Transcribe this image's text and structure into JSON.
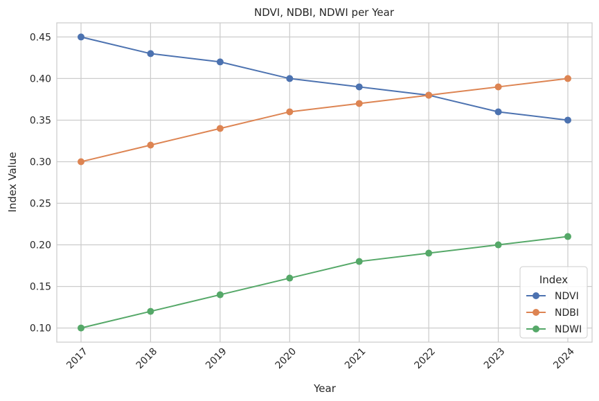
{
  "chart_data": {
    "type": "line",
    "title": "NDVI, NDBI, NDWI per Year",
    "xlabel": "Year",
    "ylabel": "Index Value",
    "categories": [
      "2017",
      "2018",
      "2019",
      "2020",
      "2021",
      "2022",
      "2023",
      "2024"
    ],
    "yticks": [
      "0.10",
      "0.15",
      "0.20",
      "0.25",
      "0.30",
      "0.35",
      "0.40",
      "0.45"
    ],
    "ylim": [
      0.083,
      0.467
    ],
    "grid": true,
    "legend": {
      "title": "Index",
      "placement": "lower-right"
    },
    "series": [
      {
        "name": "NDVI",
        "color": "#4c72b0",
        "values": [
          0.45,
          0.43,
          0.42,
          0.4,
          0.39,
          0.38,
          0.36,
          0.35
        ]
      },
      {
        "name": "NDBI",
        "color": "#dd8452",
        "values": [
          0.3,
          0.32,
          0.34,
          0.36,
          0.37,
          0.38,
          0.39,
          0.4
        ]
      },
      {
        "name": "NDWI",
        "color": "#55a868",
        "values": [
          0.1,
          0.12,
          0.14,
          0.16,
          0.18,
          0.19,
          0.2,
          0.21
        ]
      }
    ]
  }
}
